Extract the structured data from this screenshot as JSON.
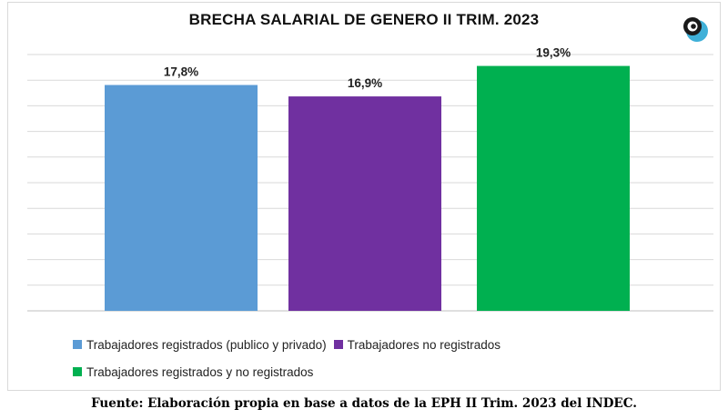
{
  "chart_data": {
    "type": "bar",
    "title": "BRECHA SALARIAL DE GENERO II TRIM. 2023",
    "categories": [
      "Trabajadores registrados (publico y privado)",
      "Trabajadores no registrados",
      "Trabajadores registrados y no registrados"
    ],
    "values": [
      17.8,
      16.9,
      19.3
    ],
    "data_labels": [
      "17,8%",
      "16,9%",
      "19,3%"
    ],
    "colors": [
      "#5b9bd5",
      "#7030a0",
      "#00b050"
    ],
    "ylim": [
      0,
      20.2
    ],
    "grid": true,
    "legend_position": "bottom",
    "xlabel": "",
    "ylabel": ""
  },
  "legend": {
    "items": [
      {
        "label": "Trabajadores registrados (publico y privado)",
        "color": "#5b9bd5"
      },
      {
        "label": "Trabajadores no registrados",
        "color": "#7030a0"
      },
      {
        "label": "Trabajadores registrados y no registrados",
        "color": "#00b050"
      }
    ]
  },
  "source_note": "Fuente: Elaboración propia en base a datos de la EPH II Trim. 2023 del INDEC.",
  "logo": {
    "icon": "brand-logo-icon",
    "colors": [
      "#1a1a1a",
      "#3fb0d8"
    ]
  }
}
